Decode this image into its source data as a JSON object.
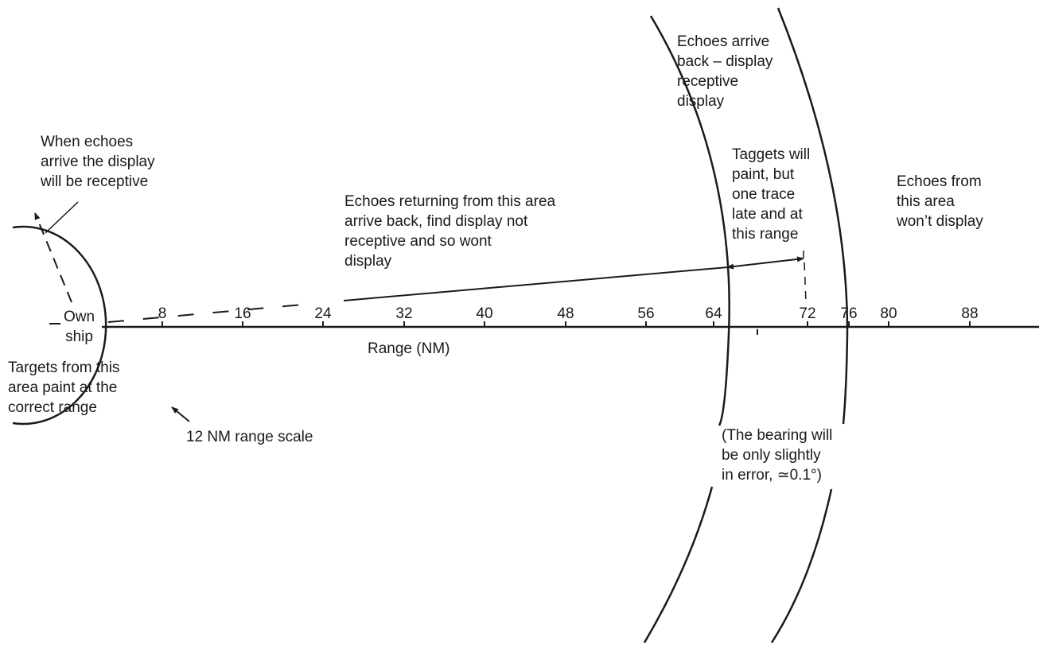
{
  "scale": {
    "ticks": [
      "8",
      "16",
      "24",
      "32",
      "40",
      "48",
      "56",
      "64",
      "72",
      "76",
      "80",
      "88"
    ],
    "axis_label": "Range (NM)",
    "origin_label": "Own\nship"
  },
  "annotations": {
    "when_echoes": "When echoes\narrive the display\nwill be receptive",
    "echoes_returning": "Echoes returning from this area\narrive back, find display not\nreceptive and so wont\ndisplay",
    "echoes_arrive_back": "Echoes arrive\nback – display\nreceptive\ndisplay",
    "targets_will_paint": "Taggets will\npaint, but\none trace\nlate and at\nthis range",
    "echoes_from_area": "Echoes from\nthis area\nwon’t display",
    "targets_correct_range": "Targets from this\narea paint at the\ncorrect range",
    "range_scale_12": "12 NM range scale",
    "bearing_note": "(The bearing will\nbe only slightly\nin error, ≃0.1°)"
  },
  "colors": {
    "ink": "#1a1a1a",
    "background": "#ffffff"
  }
}
